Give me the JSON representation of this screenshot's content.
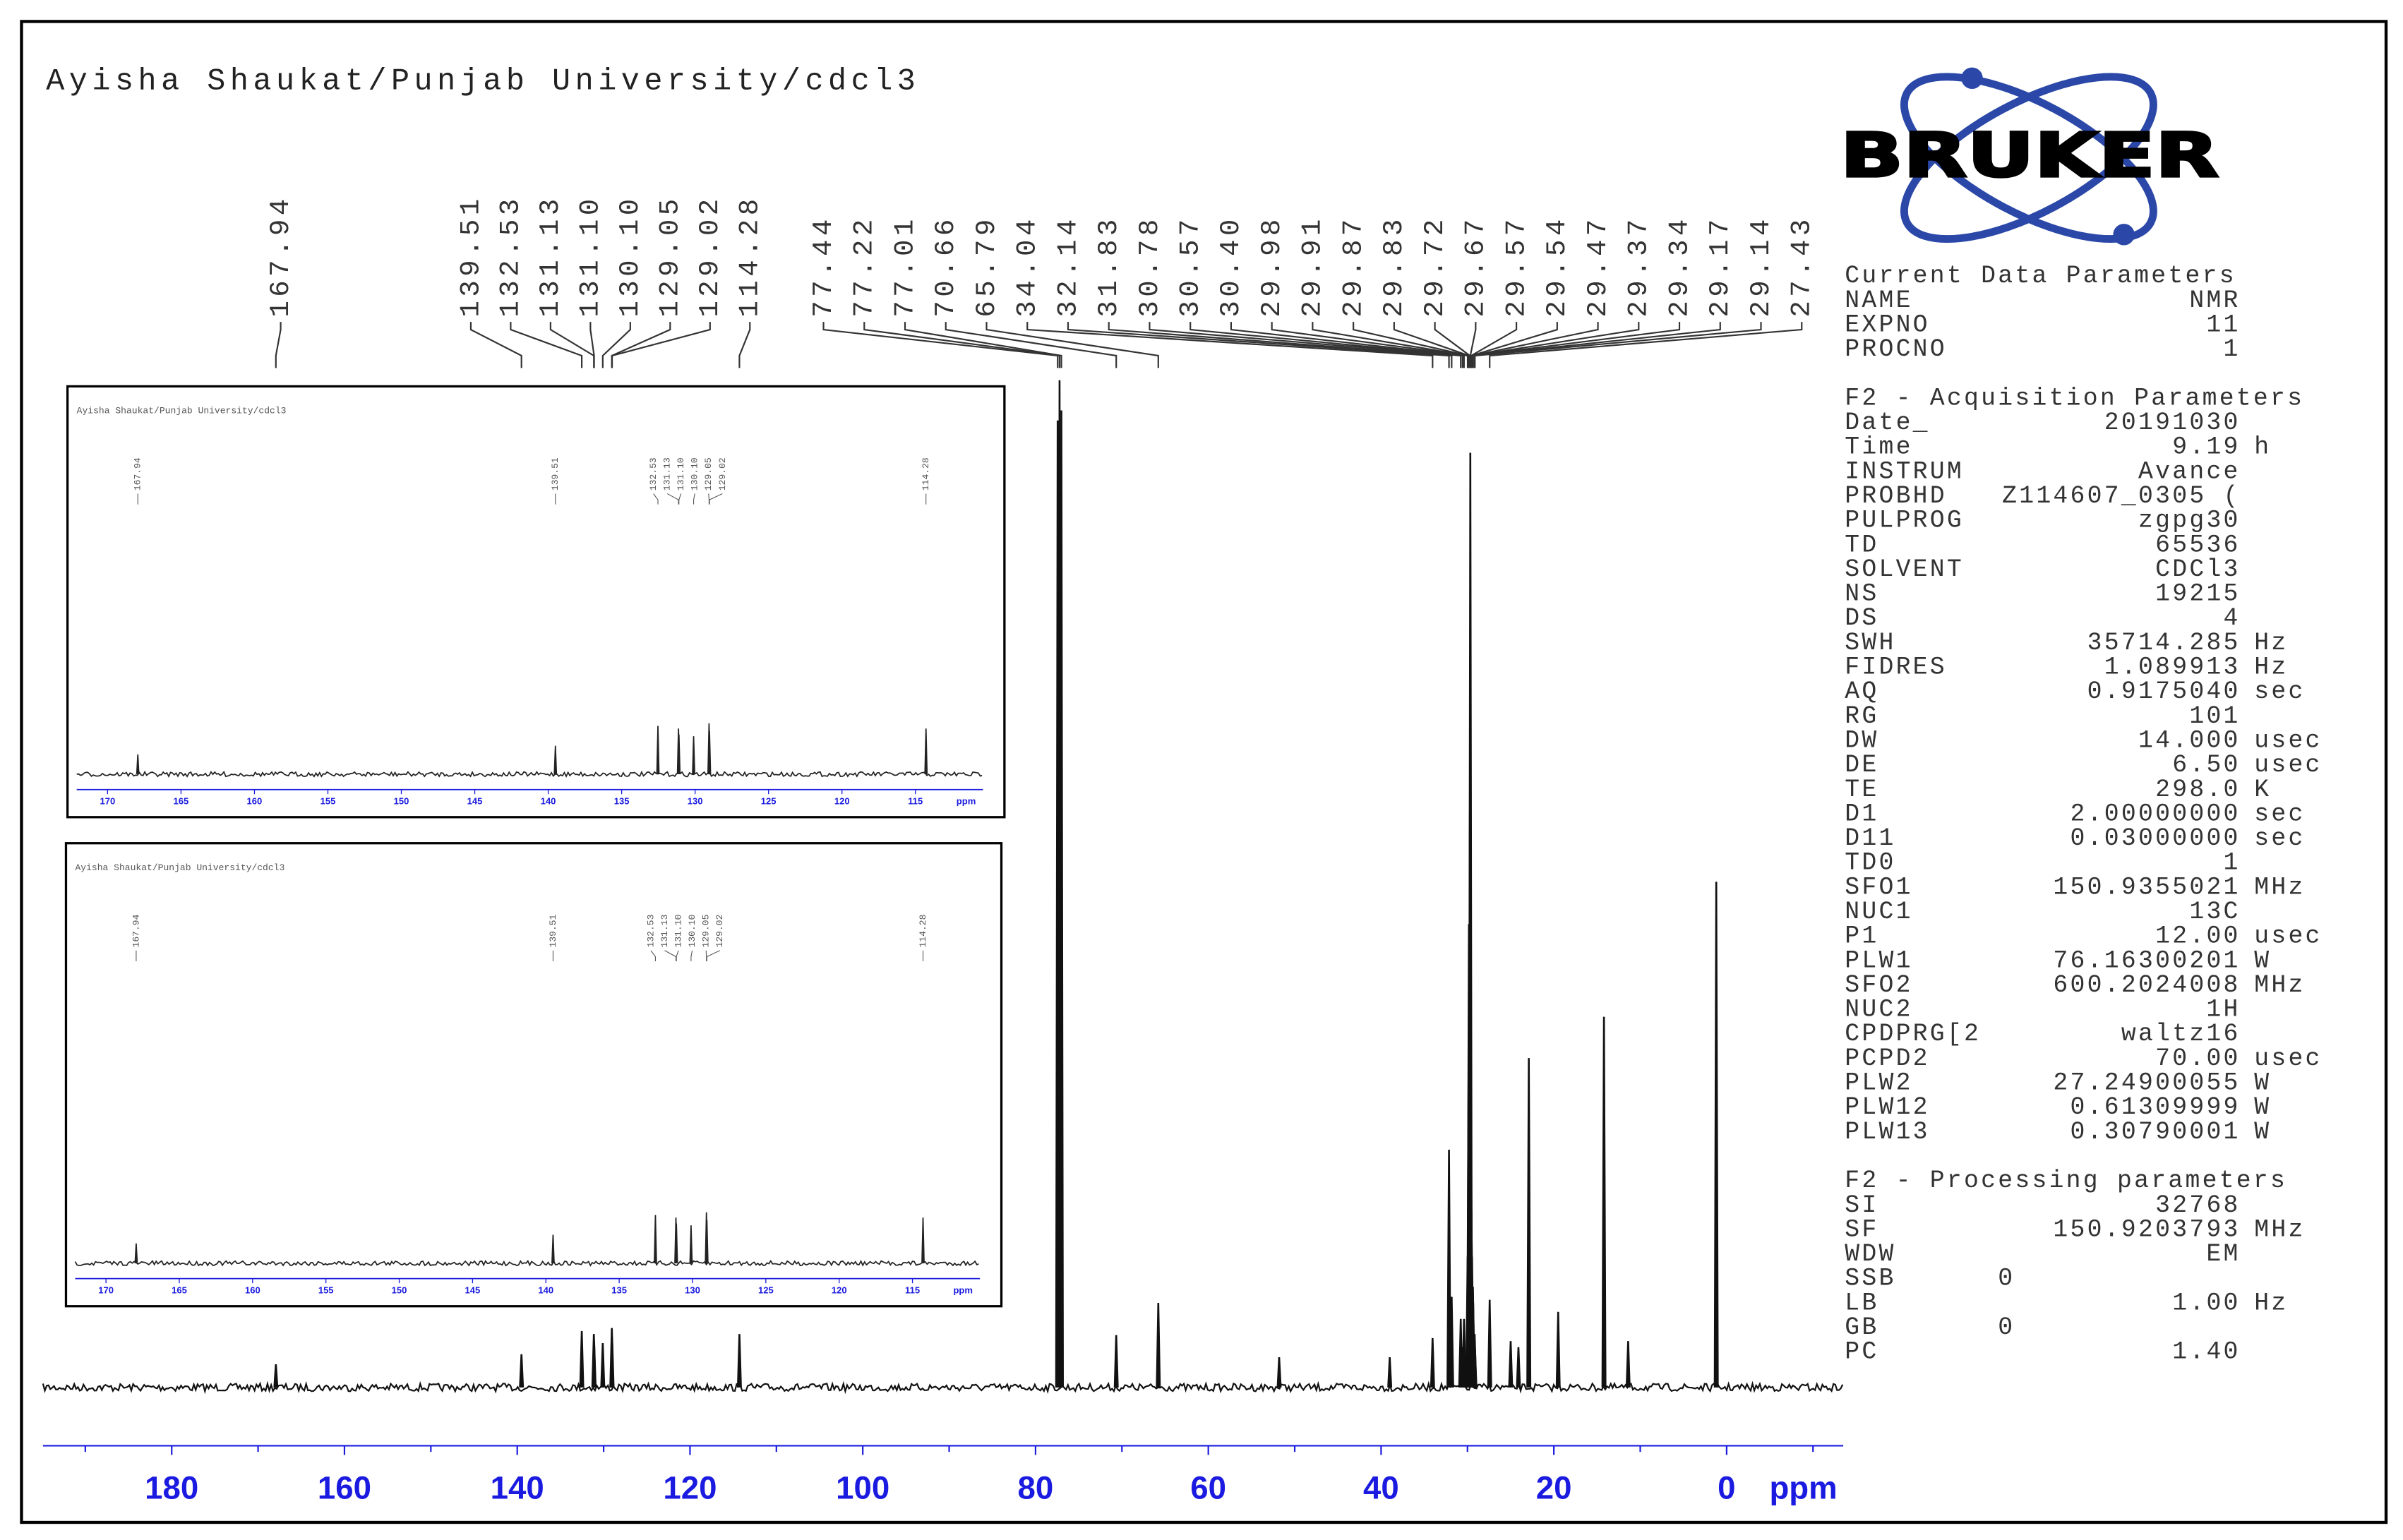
{
  "chart_data": {
    "type": "spectrum",
    "title": "Ayisha Shaukat/Punjab University/cdcl3",
    "xlabel": "ppm",
    "xlim": [
      194.9,
      -13.5
    ],
    "xticks": [
      180,
      160,
      140,
      120,
      100,
      80,
      60,
      40,
      20,
      0
    ],
    "xminorticks": [
      190,
      170,
      150,
      130,
      110,
      90,
      70,
      50,
      30,
      10,
      -10
    ],
    "ylim": [
      0,
      100
    ],
    "color": "#111111",
    "axis_color": "#1a1ae0",
    "peak_ppm": [
      167.94,
      139.51,
      132.53,
      131.13,
      131.1,
      130.1,
      129.05,
      129.02,
      114.28,
      77.44,
      77.22,
      77.01,
      70.66,
      65.79,
      34.04,
      32.14,
      31.83,
      30.78,
      30.57,
      30.4,
      29.98,
      29.91,
      29.87,
      29.83,
      29.72,
      29.67,
      29.57,
      29.54,
      29.47,
      29.37,
      29.34,
      29.17,
      29.14,
      27.43
    ],
    "peak_labels": [
      "167.94",
      "139.51",
      "132.53",
      "131.13",
      "131.10",
      "130.10",
      "129.05",
      "129.02",
      "114.28",
      "77.44",
      "77.22",
      "77.01",
      "70.66",
      "65.79",
      "34.04",
      "32.14",
      "31.83",
      "30.78",
      "30.57",
      "30.40",
      "29.98",
      "29.91",
      "29.87",
      "29.83",
      "29.72",
      "29.67",
      "29.57",
      "29.54",
      "29.47",
      "29.37",
      "29.34",
      "29.17",
      "29.14",
      "27.43"
    ],
    "intensity": [
      2.3,
      3.3,
      5.6,
      5.3,
      4.6,
      4.4,
      5.9,
      5.0,
      5.3,
      96,
      100,
      97,
      5.2,
      8.4,
      4.9,
      23.6,
      9,
      6.8,
      4,
      6.8,
      13,
      16,
      31,
      46,
      57,
      92.8,
      21,
      17.5,
      13,
      10,
      8.4,
      5.3,
      4,
      8.7
    ],
    "unlabeled_peaks": {
      "ppm": [
        51.8,
        39,
        25,
        24.1,
        22.9,
        19.5,
        14.2,
        11.4,
        1.2
      ],
      "intensity": [
        3,
        3,
        4.6,
        4,
        32.7,
        7.5,
        36.8,
        4.6,
        50.2
      ]
    },
    "inset": {
      "xlim": [
        172.1,
        110.4
      ],
      "xticks": [
        170,
        165,
        160,
        155,
        150,
        145,
        140,
        135,
        130,
        125,
        120,
        115
      ],
      "ylim": [
        0,
        40
      ]
    }
  },
  "logo": "BRUKER",
  "parameters": {
    "sections": [
      {
        "title": "Current Data Parameters",
        "rows": [
          [
            "NAME",
            "NMR"
          ],
          [
            "EXPNO",
            "11"
          ],
          [
            "PROCNO",
            "1"
          ]
        ]
      },
      {
        "title": "F2 - Acquisition Parameters",
        "rows": [
          [
            "Date_",
            "20191030"
          ],
          [
            "Time",
            "9.19",
            "h"
          ],
          [
            "INSTRUM",
            "Avance"
          ],
          [
            "PROBHD",
            "Z114607_0305 ("
          ],
          [
            "PULPROG",
            "zgpg30"
          ],
          [
            "TD",
            "65536"
          ],
          [
            "SOLVENT",
            "CDCl3"
          ],
          [
            "NS",
            "19215"
          ],
          [
            "DS",
            "4"
          ],
          [
            "SWH",
            "35714.285",
            "Hz"
          ],
          [
            "FIDRES",
            "1.089913",
            "Hz"
          ],
          [
            "AQ",
            "0.9175040",
            "sec"
          ],
          [
            "RG",
            "101"
          ],
          [
            "DW",
            "14.000",
            "usec"
          ],
          [
            "DE",
            "6.50",
            "usec"
          ],
          [
            "TE",
            "298.0",
            "K"
          ],
          [
            "D1",
            "2.00000000",
            "sec"
          ],
          [
            "D11",
            "0.03000000",
            "sec"
          ],
          [
            "TD0",
            "1"
          ],
          [
            "SFO1",
            "150.9355021",
            "MHz"
          ],
          [
            "NUC1",
            "13C"
          ],
          [
            "P1",
            "12.00",
            "usec"
          ],
          [
            "PLW1",
            "76.16300201",
            "W"
          ],
          [
            "SFO2",
            "600.2024008",
            "MHz"
          ],
          [
            "NUC2",
            "1H"
          ],
          [
            "CPDPRG[2",
            "waltz16"
          ],
          [
            "PCPD2",
            "70.00",
            "usec"
          ],
          [
            "PLW2",
            "27.24900055",
            "W"
          ],
          [
            "PLW12",
            "0.61309999",
            "W"
          ],
          [
            "PLW13",
            "0.30790001",
            "W"
          ]
        ]
      },
      {
        "title": "F2 - Processing parameters",
        "rows": [
          [
            "SI",
            "32768"
          ],
          [
            "SF",
            "150.9203793",
            "MHz"
          ],
          [
            "WDW",
            "EM"
          ],
          [
            "SSB",
            "0"
          ],
          [
            "LB",
            "1.00",
            "Hz"
          ],
          [
            "GB",
            "0"
          ],
          [
            "PC",
            "1.40"
          ]
        ]
      }
    ]
  }
}
